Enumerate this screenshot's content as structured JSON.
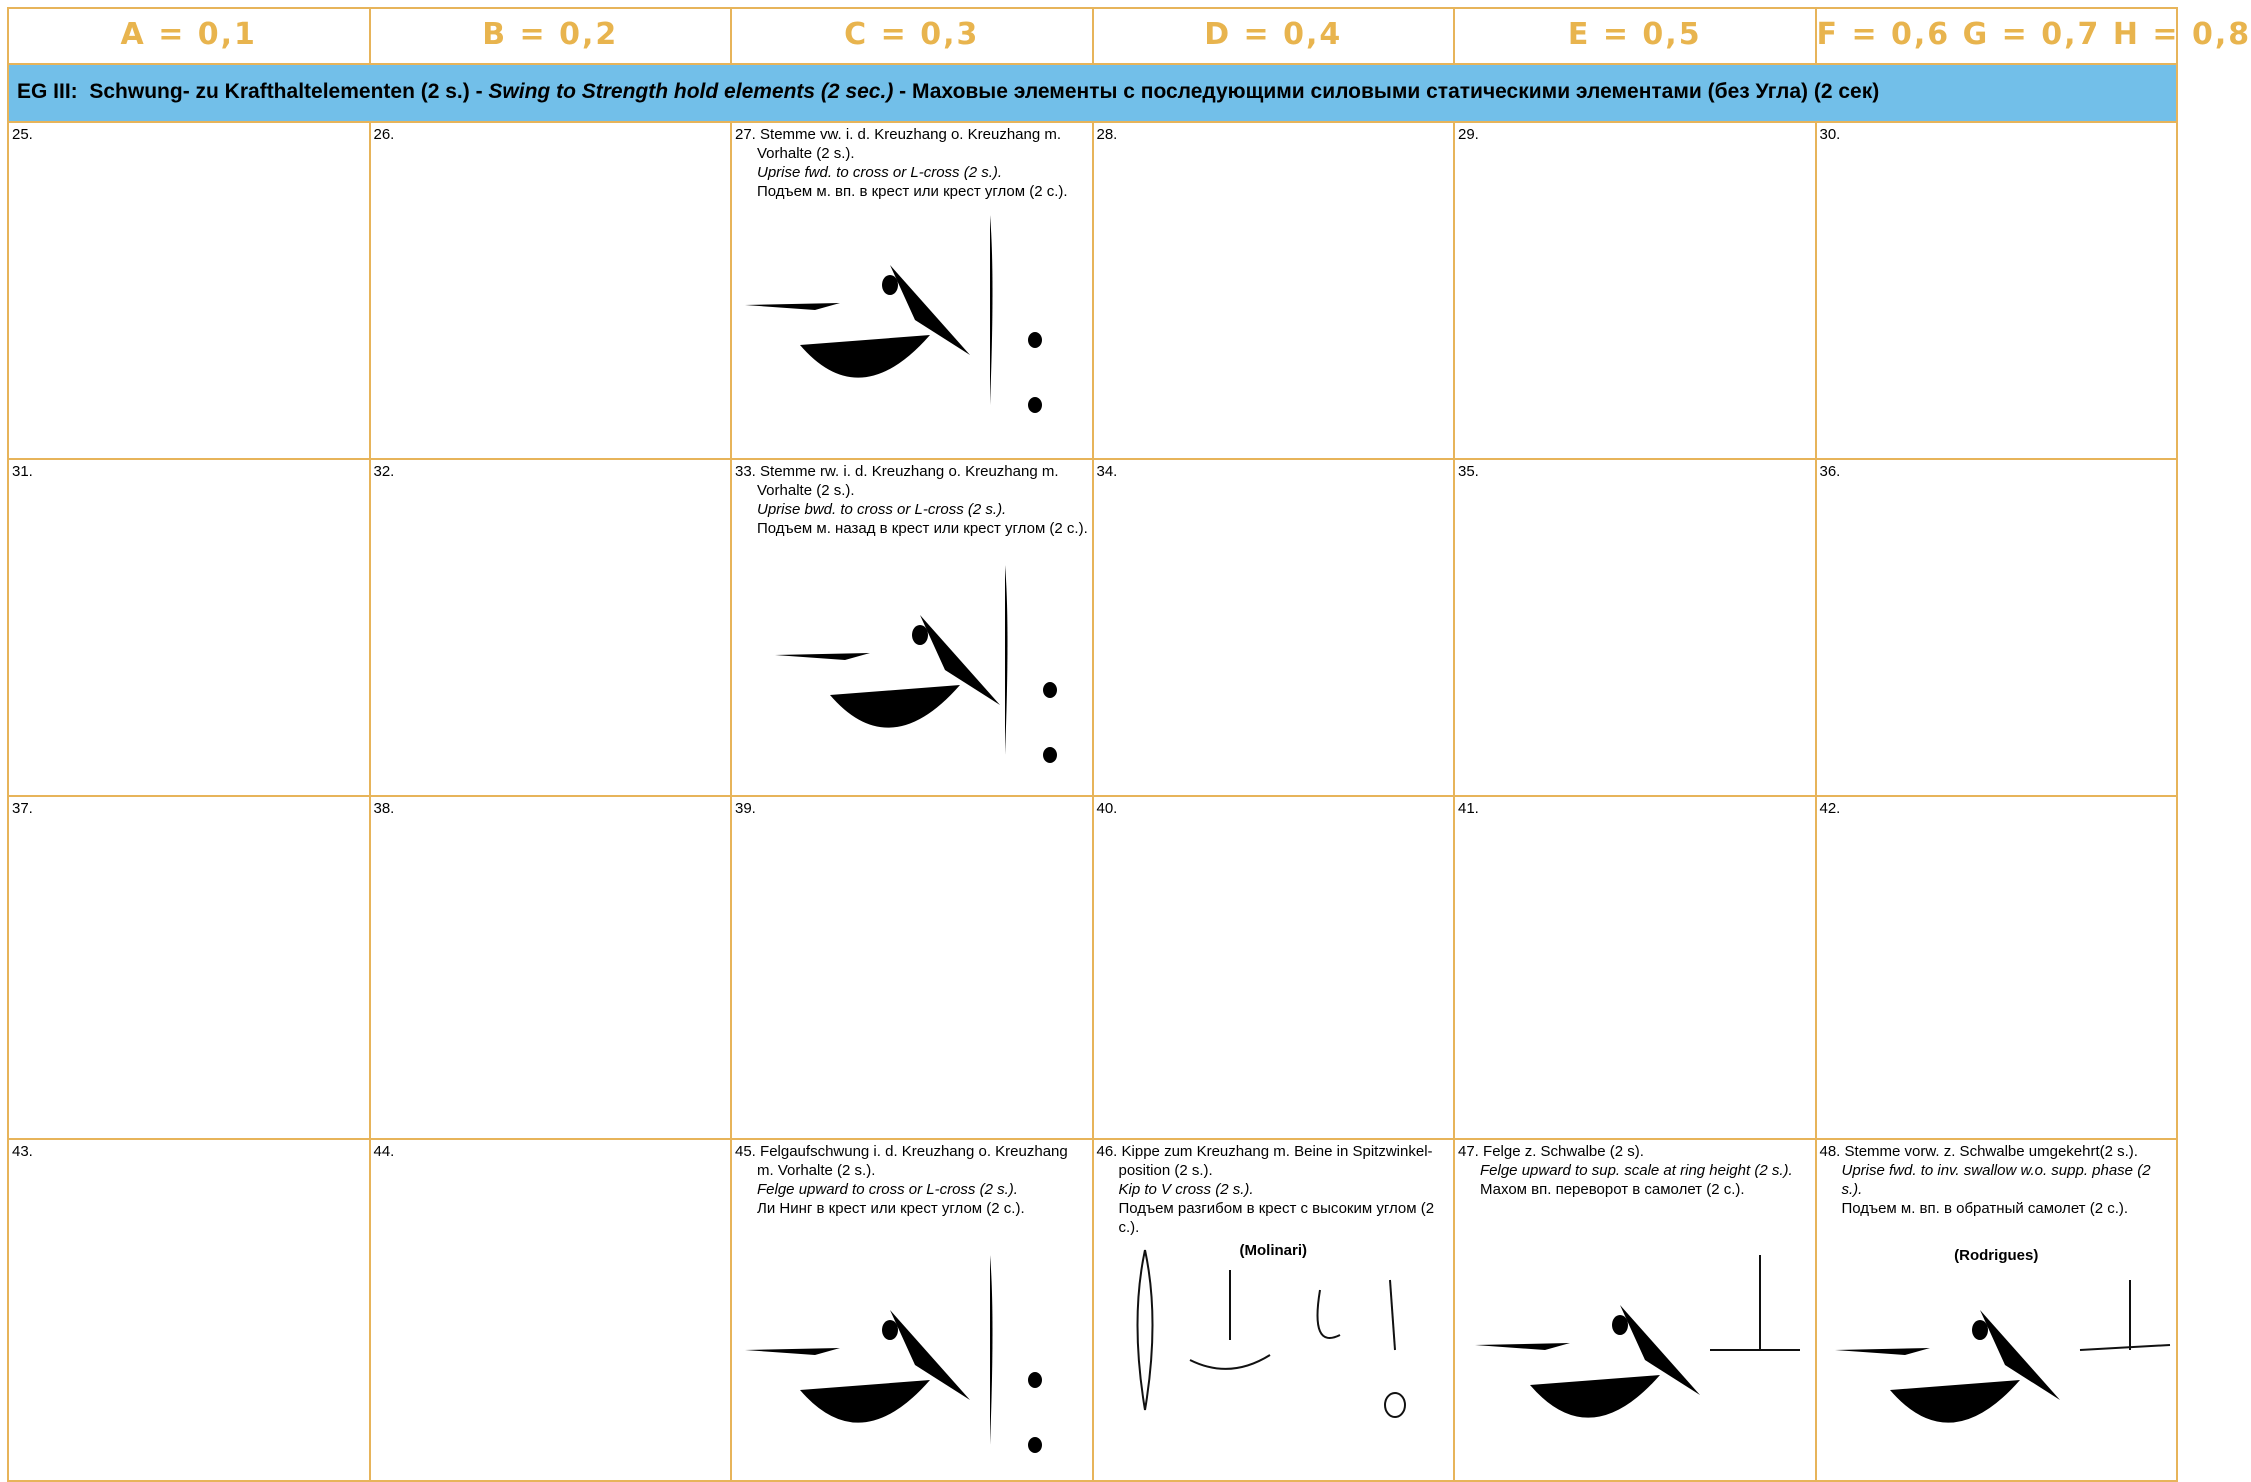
{
  "header": [
    "A = 0,1",
    "B = 0,2",
    "C = 0,3",
    "D = 0,4",
    "E = 0,5",
    "F = 0,6 G = 0,7 H = 0,8"
  ],
  "group": {
    "code": "EG III:",
    "german": "Schwung- zu Krafthaltelementen (2 s.) -",
    "english": "Swing to Strength hold elements (2 sec.)",
    "russian": "- Маховые элементы с последующими силовыми статическими элементами (без Угла) (2 сек)"
  },
  "rows": [
    [
      {
        "number": "25."
      },
      {
        "number": "26."
      },
      {
        "number": "27.",
        "german": "Stemme vw. i. d. Kreuzhang o. Kreuzhang m. Vorhalte (2 s.).",
        "english": "Uprise fwd. to cross or L-cross (2 s.).",
        "russian": "Подъем м. вп. в крест или крест углом (2 с.)."
      },
      {
        "number": "28."
      },
      {
        "number": "29."
      },
      {
        "number": "30."
      }
    ],
    [
      {
        "number": "31."
      },
      {
        "number": "32."
      },
      {
        "number": "33.",
        "german": "Stemme rw. i. d. Kreuzhang o. Kreuzhang m. Vorhalte (2 s.).",
        "english": "Uprise bwd. to cross or L-cross (2 s.).",
        "russian": "Подъем м. назад в крест или крест углом (2 с.)."
      },
      {
        "number": "34."
      },
      {
        "number": "35."
      },
      {
        "number": "36."
      }
    ],
    [
      {
        "number": "37."
      },
      {
        "number": "38."
      },
      {
        "number": "39."
      },
      {
        "number": "40."
      },
      {
        "number": "41."
      },
      {
        "number": "42."
      }
    ],
    [
      {
        "number": "43."
      },
      {
        "number": "44."
      },
      {
        "number": "45.",
        "german": "Felgaufschwung i. d. Kreuzhang o. Kreuzhang m. Vorhalte (2 s.).",
        "english": "Felge upward to cross or L-cross (2 s.).",
        "russian": "Ли Нинг в крест или крест углом (2 с.)."
      },
      {
        "number": "46.",
        "german": "Kippe zum Kreuzhang m. Beine in Spitzwinkel-position (2 s.).",
        "english": "Kip to V cross (2 s.).",
        "russian": "Подъем разгибом в крест с высоким углом (2 с.).",
        "name": "(Molinari)"
      },
      {
        "number": "47.",
        "german": "Felge z. Schwalbe (2 s).",
        "english": "Felge upward to sup. scale at ring height (2 s.).",
        "russian": "Махом вп. переворот в самолет (2 с.)."
      },
      {
        "number": "48.",
        "german": "Stemme vorw. z. Schwalbe umgekehrt(2 s.).",
        "english": "Uprise fwd. to inv. swallow w.o. supp. phase (2 s.).",
        "russian": "Подъем м. вп. в обратный самолет (2 с.).",
        "name": "(Rodrigues)"
      }
    ]
  ]
}
